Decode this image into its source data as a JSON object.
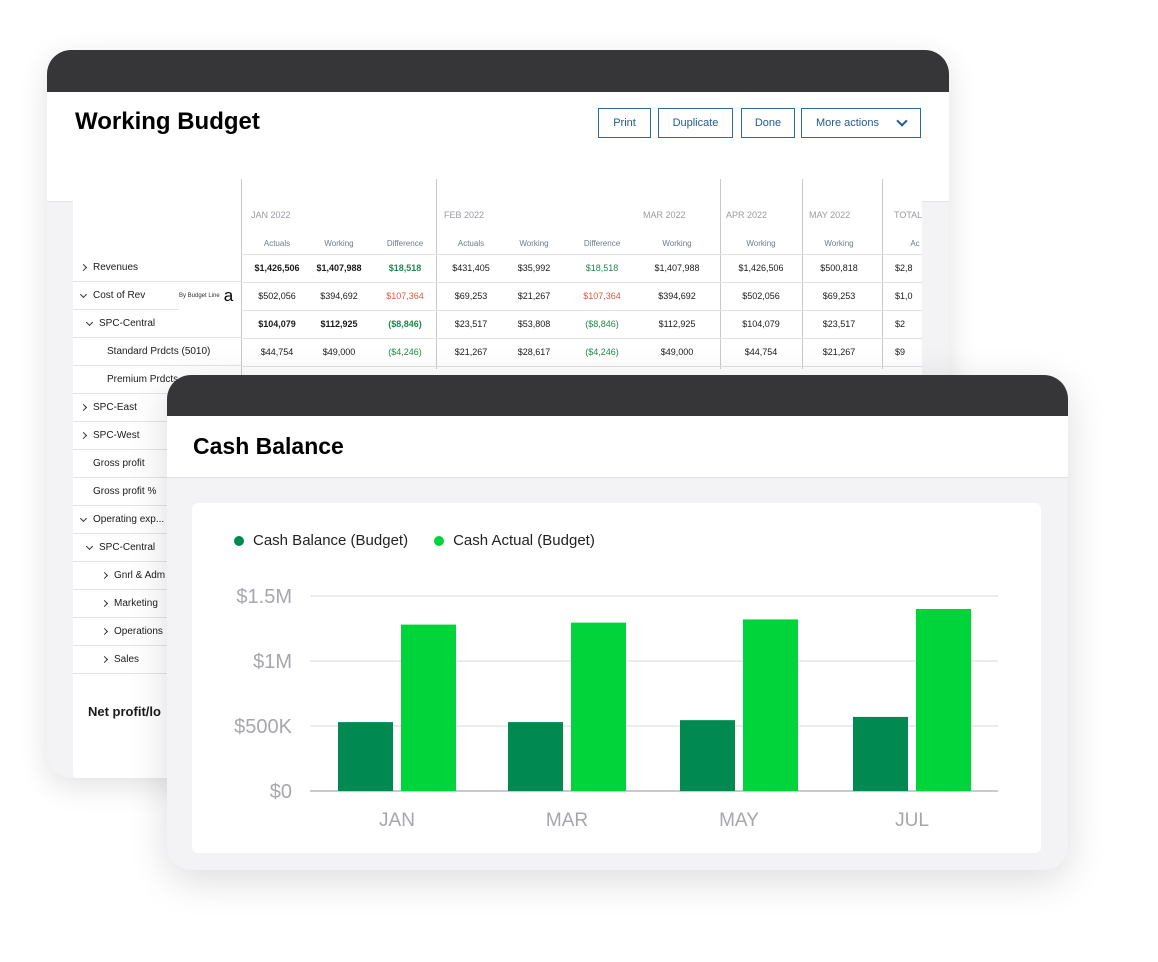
{
  "budget": {
    "title": "Working Budget",
    "buttons": {
      "print": "Print",
      "duplicate": "Duplicate",
      "done": "Done",
      "more": "More actions"
    },
    "rows": [
      {
        "label": "Revenues",
        "arrow": "right"
      },
      {
        "label": "Cost of Rev",
        "arrow": "down"
      },
      {
        "label": "SPC-Central",
        "arrow": "down"
      },
      {
        "label": "Standard Prdcts (5010)",
        "arrow": ""
      },
      {
        "label": "Premium Prdcts",
        "arrow": ""
      },
      {
        "label": "SPC-East",
        "arrow": "right"
      },
      {
        "label": "SPC-West",
        "arrow": "right"
      },
      {
        "label": "Gross profit",
        "arrow": ""
      },
      {
        "label": "Gross profit %",
        "arrow": ""
      },
      {
        "label": "Operating exp...",
        "arrow": "down"
      },
      {
        "label": "SPC-Central",
        "arrow": "down"
      },
      {
        "label": "Gnrl & Adm",
        "arrow": "right"
      },
      {
        "label": "Marketing",
        "arrow": "right"
      },
      {
        "label": "Operations",
        "arrow": "right"
      },
      {
        "label": "Sales",
        "arrow": "right"
      }
    ],
    "by_budget_line": "By Budget Line",
    "by_budget_glyph": "a",
    "months": [
      "JAN 2022",
      "FEB 2022",
      "MAR 2022",
      "APR 2022",
      "MAY 2022",
      "TOTAL"
    ],
    "subheaders": [
      "Actuals",
      "Working",
      "Difference",
      "Actuals",
      "Working",
      "Difference",
      "Working",
      "Working",
      "Working",
      "Ac"
    ],
    "data_rows": [
      [
        "$1,426,506",
        "$1,407,988",
        "$18,518",
        "$431,405",
        "$35,992",
        "$18,518",
        "$1,407,988",
        "$1,426,506",
        "$500,818",
        "$2,8"
      ],
      [
        "$502,056",
        "$394,692",
        "$107,364",
        "$69,253",
        "$21,267",
        "$107,364",
        "$394,692",
        "$502,056",
        "$69,253",
        "$1,0"
      ],
      [
        "$104,079",
        "$112,925",
        "($8,846)",
        "$23,517",
        "$53,808",
        "($8,846)",
        "$112,925",
        "$104,079",
        "$23,517",
        "$2"
      ],
      [
        "$44,754",
        "$49,000",
        "($4,246)",
        "$21,267",
        "$28,617",
        "($4,246)",
        "$49,000",
        "$44,754",
        "$21,267",
        "$9"
      ]
    ],
    "net_label": "Net profit/lo"
  },
  "cash": {
    "title": "Cash Balance",
    "legend": [
      "Cash Balance (Budget)",
      "Cash Actual (Budget)"
    ]
  },
  "colors": {
    "dark_green": "#008a52",
    "light_green": "#00d43b",
    "titlebar": "#363537",
    "button_blue": "#245a8c"
  },
  "chart_data": {
    "type": "bar",
    "categories": [
      "JAN",
      "MAR",
      "MAY",
      "JUL"
    ],
    "series": [
      {
        "name": "Cash Balance (Budget)",
        "values": [
          530000,
          530000,
          545000,
          570000
        ],
        "color": "#008a52"
      },
      {
        "name": "Cash Actual (Budget)",
        "values": [
          1280000,
          1295000,
          1320000,
          1400000
        ],
        "color": "#00d43b"
      }
    ],
    "yticks": [
      "$0",
      "$500K",
      "$1M",
      "$1.5M"
    ],
    "ytick_values": [
      0,
      500000,
      1000000,
      1500000
    ],
    "ylim": [
      0,
      1500000
    ],
    "grid": true,
    "legend_position": "top-left"
  }
}
